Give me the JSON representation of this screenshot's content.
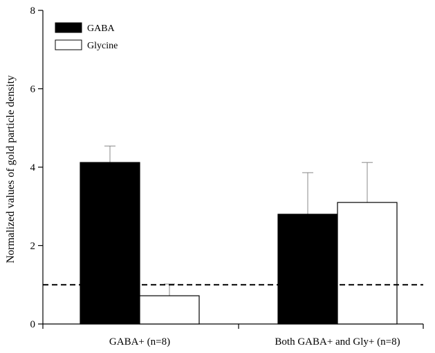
{
  "chart_data": {
    "type": "bar",
    "title": "",
    "xlabel": "",
    "ylabel": "Normalized values of gold particle density",
    "ylim": [
      0,
      8
    ],
    "yticks": [
      0,
      2,
      4,
      6,
      8
    ],
    "categories": [
      "GABA+ (n=8)",
      "Both GABA+ and Gly+ (n=8)"
    ],
    "series": [
      {
        "name": "GABA",
        "values": [
          4.12,
          2.8
        ],
        "errors": [
          0.42,
          1.06
        ],
        "color": "#000000"
      },
      {
        "name": "Glycine",
        "values": [
          0.72,
          3.1
        ],
        "errors": [
          0.3,
          1.02
        ],
        "color": "#ffffff"
      }
    ],
    "reference_line": {
      "y": 1.0,
      "style": "dashed"
    },
    "legend": {
      "placement": "top-left"
    },
    "grid": false
  }
}
